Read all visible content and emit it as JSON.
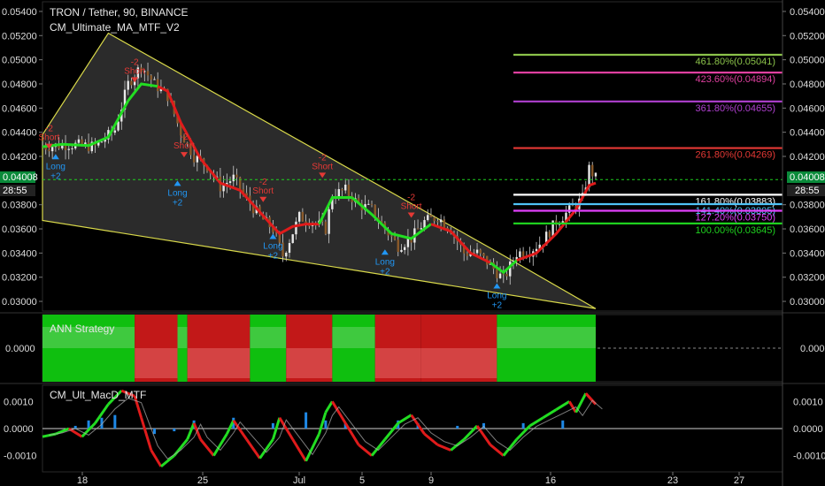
{
  "header": {
    "title": "TRON / Tether, 90, BINANCE",
    "indicator": "CM_Ultimate_MA_MTF_V2"
  },
  "current": {
    "price": "0.04008",
    "countdown": "28:55"
  },
  "chart_data": [
    {
      "type": "candlestick",
      "title": "TRON / Tether, 90, BINANCE",
      "xaxis_ticks": [
        "18",
        "25",
        "Jul",
        "5",
        "9",
        "16",
        "23",
        "27"
      ],
      "yaxis_ticks": [
        "0.05400",
        "0.05200",
        "0.05000",
        "0.04800",
        "0.04600",
        "0.04400",
        "0.04200",
        "0.03800",
        "0.03600",
        "0.03400",
        "0.03200",
        "0.03000"
      ],
      "ylim": [
        0.0292,
        0.0548
      ],
      "last_price": 0.04008,
      "close_path": [
        [
          0,
          0.0428
        ],
        [
          8,
          0.043
        ],
        [
          16,
          0.0428
        ],
        [
          22,
          0.0442
        ],
        [
          26,
          0.048
        ],
        [
          30,
          0.0495
        ],
        [
          34,
          0.048
        ],
        [
          38,
          0.047
        ],
        [
          42,
          0.044
        ],
        [
          46,
          0.042
        ],
        [
          50,
          0.0412
        ],
        [
          54,
          0.0395
        ],
        [
          58,
          0.0402
        ],
        [
          62,
          0.0385
        ],
        [
          66,
          0.037
        ],
        [
          70,
          0.036
        ],
        [
          73,
          0.0338
        ],
        [
          78,
          0.037
        ],
        [
          82,
          0.0366
        ],
        [
          86,
          0.036
        ],
        [
          88,
          0.0388
        ],
        [
          92,
          0.0392
        ],
        [
          96,
          0.038
        ],
        [
          100,
          0.0376
        ],
        [
          104,
          0.036
        ],
        [
          108,
          0.0346
        ],
        [
          112,
          0.0352
        ],
        [
          116,
          0.0366
        ],
        [
          120,
          0.037
        ],
        [
          124,
          0.036
        ],
        [
          128,
          0.034
        ],
        [
          132,
          0.034
        ],
        [
          136,
          0.033
        ],
        [
          140,
          0.0318
        ],
        [
          144,
          0.034
        ],
        [
          148,
          0.0342
        ],
        [
          152,
          0.035
        ],
        [
          156,
          0.0366
        ],
        [
          160,
          0.0375
        ],
        [
          164,
          0.0385
        ],
        [
          166,
          0.041
        ],
        [
          168,
          0.0402
        ]
      ],
      "ma_line": [
        [
          0,
          0.0428
        ],
        [
          6,
          0.043
        ],
        [
          14,
          0.0429
        ],
        [
          20,
          0.0436
        ],
        [
          26,
          0.0466
        ],
        [
          30,
          0.048
        ],
        [
          35,
          0.0478
        ],
        [
          38,
          0.0474
        ],
        [
          42,
          0.0448
        ],
        [
          48,
          0.0418
        ],
        [
          54,
          0.0398
        ],
        [
          60,
          0.0392
        ],
        [
          66,
          0.0374
        ],
        [
          72,
          0.0356
        ],
        [
          76,
          0.0362
        ],
        [
          80,
          0.0364
        ],
        [
          84,
          0.0364
        ],
        [
          88,
          0.0386
        ],
        [
          94,
          0.0386
        ],
        [
          100,
          0.0372
        ],
        [
          106,
          0.0356
        ],
        [
          112,
          0.0352
        ],
        [
          118,
          0.0364
        ],
        [
          124,
          0.0358
        ],
        [
          130,
          0.034
        ],
        [
          136,
          0.0332
        ],
        [
          140,
          0.0324
        ],
        [
          144,
          0.0334
        ],
        [
          150,
          0.034
        ],
        [
          156,
          0.0356
        ],
        [
          162,
          0.0376
        ],
        [
          166,
          0.0396
        ],
        [
          168,
          0.0398
        ]
      ],
      "ma_segments": [
        {
          "from": 0,
          "to": 4,
          "color": "green"
        },
        {
          "from": 4,
          "to": 6,
          "color": "green"
        },
        {
          "from": 6,
          "to": 16,
          "color": "red"
        },
        {
          "from": 16,
          "to": 18,
          "color": "green"
        },
        {
          "from": 18,
          "to": 22,
          "color": "green"
        },
        {
          "from": 22,
          "to": 25,
          "color": "red"
        },
        {
          "from": 25,
          "to": 27,
          "color": "green"
        },
        {
          "from": 27,
          "to": 32,
          "color": "red"
        }
      ],
      "wedge": {
        "upper": [
          [
            0,
            0.0438
          ],
          [
            20,
            0.0522
          ],
          [
            140,
            0.0338
          ],
          [
            168,
            0.0294
          ]
        ],
        "lower": [
          [
            0,
            0.0367
          ],
          [
            168,
            0.0294
          ]
        ]
      },
      "fib_levels": [
        {
          "label": "461.80%(0.05041)",
          "value": 0.05041,
          "color": "#8bc34a"
        },
        {
          "label": "423.60%(0.04894)",
          "value": 0.04894,
          "color": "#e040a0"
        },
        {
          "label": "361.80%(0.04655)",
          "value": 0.04655,
          "color": "#b040d0"
        },
        {
          "label": "261.80%(0.04269)",
          "value": 0.04269,
          "color": "#e53935"
        },
        {
          "label": "161.80%(0.03883)",
          "value": 0.03883,
          "color": "#ffffff"
        },
        {
          "label": "141.40%(0.03805)",
          "value": 0.03805,
          "color": "#4fc3f7"
        },
        {
          "label": "127.20%(0.03750)",
          "value": 0.0375,
          "color": "#e040fb"
        },
        {
          "label": "100.00%(0.03645)",
          "value": 0.03645,
          "color": "#1fd11f"
        }
      ],
      "signals": [
        {
          "type": "short",
          "bar": 2,
          "price": 0.0432,
          "label": "Short",
          "value": "-2"
        },
        {
          "type": "long",
          "bar": 4,
          "price": 0.0422,
          "label": "Long",
          "value": "+2"
        },
        {
          "type": "short",
          "bar": 28,
          "price": 0.0487,
          "label": "Short",
          "value": "-2"
        },
        {
          "type": "short",
          "bar": 43,
          "price": 0.0425,
          "label": "Short",
          "value": "-2"
        },
        {
          "type": "long",
          "bar": 41,
          "price": 0.04,
          "label": "Long",
          "value": "+2"
        },
        {
          "type": "short",
          "bar": 67,
          "price": 0.0388,
          "label": "Short",
          "value": "-2"
        },
        {
          "type": "long",
          "bar": 70,
          "price": 0.0356,
          "label": "Long",
          "value": "+2"
        },
        {
          "type": "short",
          "bar": 85,
          "price": 0.0408,
          "label": "Short",
          "value": "-2"
        },
        {
          "type": "long",
          "bar": 104,
          "price": 0.0343,
          "label": "Long",
          "value": "+2"
        },
        {
          "type": "short",
          "bar": 112,
          "price": 0.0375,
          "label": "Short",
          "value": "-2"
        },
        {
          "type": "long",
          "bar": 138,
          "price": 0.0315,
          "label": "Long",
          "value": "+2"
        }
      ]
    },
    {
      "type": "area",
      "title": "ANN Strategy",
      "yaxis_ticks": [
        "0.0000"
      ],
      "blocks": [
        {
          "from": 0,
          "to": 28,
          "color": "green",
          "level": 0.8
        },
        {
          "from": 28,
          "to": 41,
          "color": "red",
          "level": 1.0
        },
        {
          "from": 41,
          "to": 44,
          "color": "green",
          "level": 0.85
        },
        {
          "from": 44,
          "to": 63,
          "color": "red",
          "level": 1.0
        },
        {
          "from": 63,
          "to": 74,
          "color": "green",
          "level": 0.8
        },
        {
          "from": 74,
          "to": 88,
          "color": "red",
          "level": 1.0
        },
        {
          "from": 88,
          "to": 101,
          "color": "green",
          "level": 0.75
        },
        {
          "from": 101,
          "to": 115,
          "color": "red",
          "level": 1.0
        },
        {
          "from": 115,
          "to": 138,
          "color": "red",
          "level": 1.0
        },
        {
          "from": 138,
          "to": 168,
          "color": "green",
          "level": 0.6
        }
      ]
    },
    {
      "type": "line",
      "title": "CM_Ult_MacD_MTF",
      "yaxis_ticks": [
        "0.0010",
        "0.0000",
        "-0.0010"
      ],
      "ylim": [
        -0.0016,
        0.0016
      ],
      "macd": [
        [
          0,
          -0.0003
        ],
        [
          4,
          -0.0002
        ],
        [
          8,
          0.0
        ],
        [
          12,
          -0.0003
        ],
        [
          16,
          0.0002
        ],
        [
          20,
          0.0009
        ],
        [
          24,
          0.0014
        ],
        [
          28,
          0.0012
        ],
        [
          30,
          0.0004
        ],
        [
          33,
          -0.0008
        ],
        [
          36,
          -0.0014
        ],
        [
          40,
          -0.001
        ],
        [
          44,
          -0.0004
        ],
        [
          46,
          0.0002
        ],
        [
          48,
          -0.0004
        ],
        [
          52,
          -0.001
        ],
        [
          56,
          -0.0002
        ],
        [
          58,
          0.0003
        ],
        [
          62,
          -0.0004
        ],
        [
          66,
          -0.0011
        ],
        [
          70,
          -0.0004
        ],
        [
          72,
          0.0004
        ],
        [
          76,
          -0.0004
        ],
        [
          80,
          -0.0012
        ],
        [
          84,
          -0.0002
        ],
        [
          86,
          0.0006
        ],
        [
          88,
          0.001
        ],
        [
          92,
          0.0002
        ],
        [
          96,
          -0.0006
        ],
        [
          100,
          -0.001
        ],
        [
          104,
          -0.0004
        ],
        [
          108,
          0.0002
        ],
        [
          112,
          0.0005
        ],
        [
          116,
          -0.0002
        ],
        [
          120,
          -0.0006
        ],
        [
          124,
          -0.0008
        ],
        [
          128,
          -0.0004
        ],
        [
          132,
          0.0001
        ],
        [
          136,
          -0.0006
        ],
        [
          140,
          -0.001
        ],
        [
          144,
          -0.0004
        ],
        [
          148,
          0.0001
        ],
        [
          152,
          0.0004
        ],
        [
          156,
          0.0007
        ],
        [
          160,
          0.001
        ],
        [
          162,
          0.0006
        ],
        [
          165,
          0.0013
        ],
        [
          168,
          0.0009
        ]
      ],
      "histogram": [
        [
          10,
          0.0001
        ],
        [
          14,
          0.0003
        ],
        [
          18,
          0.0004
        ],
        [
          22,
          0.0005
        ],
        [
          34,
          -0.0002
        ],
        [
          40,
          -0.0001
        ],
        [
          46,
          0.0003
        ],
        [
          58,
          0.0004
        ],
        [
          70,
          0.0002
        ],
        [
          80,
          0.0006
        ],
        [
          86,
          0.0003
        ],
        [
          92,
          0.0002
        ],
        [
          108,
          0.0003
        ],
        [
          114,
          0.0002
        ],
        [
          126,
          0.0001
        ],
        [
          134,
          0.0002
        ],
        [
          146,
          0.0002
        ],
        [
          158,
          0.0003
        ]
      ]
    }
  ]
}
